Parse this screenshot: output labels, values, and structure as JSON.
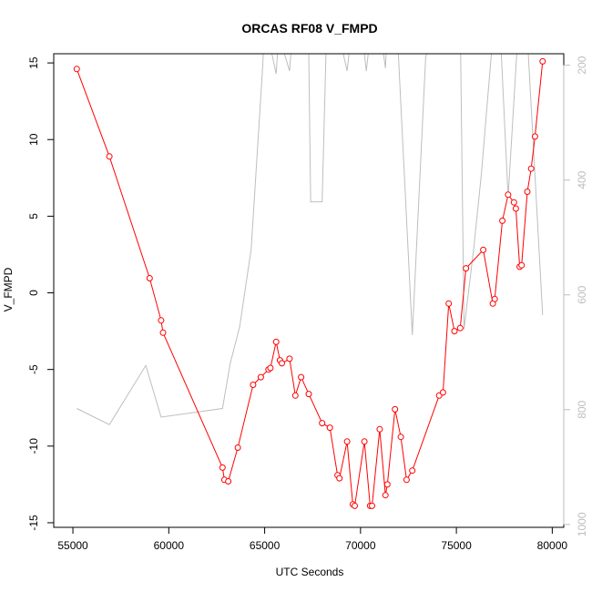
{
  "chart_data": {
    "type": "line",
    "title": "ORCAS RF08 V_FMPD",
    "xlabel": "UTC Seconds",
    "ylabel": "V_FMPD",
    "xlim": [
      54000,
      80600
    ],
    "ylim": [
      -15.3,
      15.6
    ],
    "x_ticks": [
      55000,
      60000,
      65000,
      70000,
      75000,
      80000
    ],
    "x_tick_labels": [
      "55000",
      "60000",
      "65000",
      "70000",
      "75000",
      "80000"
    ],
    "y_ticks": [
      -15,
      -10,
      -5,
      0,
      5,
      10,
      15
    ],
    "y_tick_labels": [
      "-15",
      "-10",
      "-5",
      "0",
      "5",
      "10",
      "15"
    ],
    "secondary_axis": {
      "position": "right",
      "reversed": true,
      "ylim": [
        1005,
        180
      ],
      "ticks": [
        200,
        400,
        600,
        800,
        1000
      ],
      "tick_labels": [
        "200",
        "400",
        "600",
        "800",
        "1000"
      ],
      "color": "#bebebe"
    },
    "grid": false,
    "legend": "none",
    "series": [
      {
        "axis": "left",
        "color": "#ff0000",
        "style": "line+open-circles",
        "points": [
          [
            55200,
            14.6
          ],
          [
            56900,
            8.9
          ],
          [
            59000,
            0.95
          ],
          [
            59600,
            -1.8
          ],
          [
            59700,
            -2.6
          ],
          [
            62800,
            -11.4
          ],
          [
            62900,
            -12.2
          ],
          [
            63100,
            -12.3
          ],
          [
            63600,
            -10.1
          ],
          [
            64400,
            -6.0
          ],
          [
            64800,
            -5.5
          ],
          [
            65200,
            -5.0
          ],
          [
            65300,
            -4.9
          ],
          [
            65600,
            -3.2
          ],
          [
            65800,
            -4.4
          ],
          [
            65900,
            -4.6
          ],
          [
            66300,
            -4.3
          ],
          [
            66600,
            -6.7
          ],
          [
            66900,
            -5.5
          ],
          [
            67300,
            -6.6
          ],
          [
            68000,
            -8.5
          ],
          [
            68400,
            -8.8
          ],
          [
            68800,
            -11.9
          ],
          [
            68900,
            -12.1
          ],
          [
            69300,
            -9.7
          ],
          [
            69600,
            -13.8
          ],
          [
            69700,
            -13.9
          ],
          [
            70200,
            -9.7
          ],
          [
            70500,
            -13.9
          ],
          [
            70600,
            -13.9
          ],
          [
            71000,
            -8.9
          ],
          [
            71300,
            -13.2
          ],
          [
            71400,
            -12.5
          ],
          [
            71800,
            -7.6
          ],
          [
            72100,
            -9.4
          ],
          [
            72400,
            -12.2
          ],
          [
            72700,
            -11.6
          ],
          [
            74100,
            -6.7
          ],
          [
            74300,
            -6.5
          ],
          [
            74600,
            -0.7
          ],
          [
            74900,
            -2.5
          ],
          [
            75200,
            -2.3
          ],
          [
            75500,
            1.6
          ],
          [
            76400,
            2.8
          ],
          [
            76900,
            -0.7
          ],
          [
            77000,
            -0.4
          ],
          [
            77400,
            4.7
          ],
          [
            77700,
            6.4
          ],
          [
            78000,
            5.9
          ],
          [
            78100,
            5.5
          ],
          [
            78300,
            1.7
          ],
          [
            78400,
            1.8
          ],
          [
            78700,
            6.6
          ],
          [
            78900,
            8.1
          ],
          [
            79100,
            10.2
          ],
          [
            79500,
            15.1
          ]
        ]
      },
      {
        "axis": "right",
        "color": "#bebebe",
        "style": "line",
        "points": [
          [
            55200,
            798
          ],
          [
            56900,
            826
          ],
          [
            58800,
            723
          ],
          [
            59600,
            813
          ],
          [
            62800,
            798
          ],
          [
            63200,
            720
          ],
          [
            63700,
            655
          ],
          [
            64300,
            520
          ],
          [
            64900,
            200
          ],
          [
            65000,
            120
          ],
          [
            65600,
            215
          ],
          [
            65700,
            165
          ],
          [
            65900,
            165
          ],
          [
            66300,
            210
          ],
          [
            66400,
            165
          ],
          [
            66600,
            165
          ],
          [
            66700,
            180
          ],
          [
            67300,
            180
          ],
          [
            67400,
            438
          ],
          [
            68000,
            438
          ],
          [
            68200,
            180
          ],
          [
            69100,
            180
          ],
          [
            69300,
            210
          ],
          [
            69400,
            180
          ],
          [
            70200,
            180
          ],
          [
            70300,
            210
          ],
          [
            70400,
            180
          ],
          [
            71200,
            180
          ],
          [
            71300,
            205
          ],
          [
            71400,
            130
          ],
          [
            71900,
            130
          ],
          [
            72700,
            670
          ],
          [
            73400,
            185
          ],
          [
            74200,
            120
          ],
          [
            75200,
            120
          ],
          [
            75400,
            660
          ],
          [
            75900,
            520
          ],
          [
            76300,
            390
          ],
          [
            76900,
            150
          ],
          [
            77300,
            150
          ],
          [
            77700,
            430
          ],
          [
            78200,
            150
          ],
          [
            78700,
            150
          ],
          [
            79500,
            635
          ]
        ]
      }
    ]
  }
}
